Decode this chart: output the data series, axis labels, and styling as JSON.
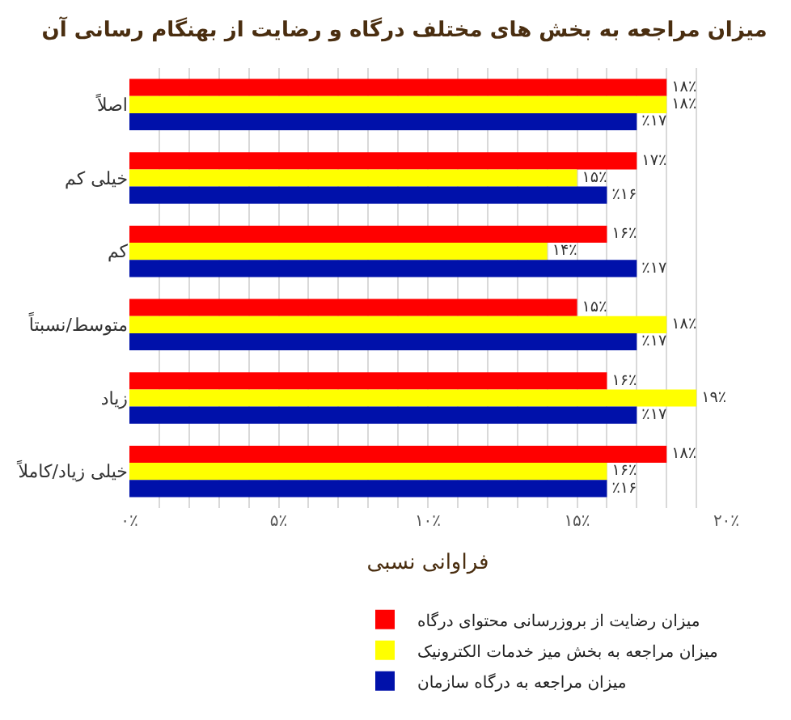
{
  "chart_data": {
    "type": "bar",
    "orientation": "horizontal",
    "title": "میزان مراجعه به بخش های مختلف درگاه و رضایت از بهنگام رسانی آن",
    "xlabel": "فراوانی نسبی",
    "categories": [
      "اصلاً",
      "خیلی کم",
      "کم",
      "متوسط/نسبتاً",
      "زیاد",
      "خیلی زیاد/کاملاً"
    ],
    "series": [
      {
        "name": "میزان رضایت از بروزرسانی محتوای درگاه",
        "color": "#ff0000",
        "values": [
          18,
          17,
          16,
          15,
          16,
          18
        ],
        "value_labels": [
          "۱۸٪",
          "۱۷٪",
          "۱۶٪",
          "۱۵٪",
          "۱۶٪",
          "۱۸٪"
        ]
      },
      {
        "name": "میزان مراجعه به بخش میز خدمات الکترونیک",
        "color": "#ffff00",
        "values": [
          18,
          15,
          14,
          18,
          19,
          16
        ],
        "value_labels": [
          "۱۸٪",
          "۱۵٪",
          "۱۴٪",
          "۱۸٪",
          "۱۹٪",
          "۱۶٪"
        ]
      },
      {
        "name": "میزان مراجعه به درگاه سازمان",
        "color": "#0011aa",
        "values": [
          17,
          16,
          17,
          17,
          17,
          16
        ],
        "value_labels": [
          "٪۱۷",
          "٪۱۶",
          "٪۱۷",
          "٪۱۷",
          "٪۱۷",
          "٪۱۶"
        ]
      }
    ],
    "xlim": [
      0,
      20
    ],
    "xticks": [
      {
        "value": 0,
        "label": "۰٪"
      },
      {
        "value": 1,
        "label": null
      },
      {
        "value": 2,
        "label": null
      },
      {
        "value": 3,
        "label": null
      },
      {
        "value": 4,
        "label": null
      },
      {
        "value": 5,
        "label": "۵٪"
      },
      {
        "value": 6,
        "label": null
      },
      {
        "value": 7,
        "label": null
      },
      {
        "value": 8,
        "label": null
      },
      {
        "value": 9,
        "label": null
      },
      {
        "value": 10,
        "label": "۱۰٪"
      },
      {
        "value": 11,
        "label": null
      },
      {
        "value": 12,
        "label": null
      },
      {
        "value": 13,
        "label": null
      },
      {
        "value": 14,
        "label": null
      },
      {
        "value": 15,
        "label": "۱۵٪"
      },
      {
        "value": 16,
        "label": null
      },
      {
        "value": 17,
        "label": null
      },
      {
        "value": 18,
        "label": null
      },
      {
        "value": 19,
        "label": null
      },
      {
        "value": 20,
        "label": "۲۰٪"
      }
    ],
    "grid": "x",
    "legend": "bottom"
  }
}
